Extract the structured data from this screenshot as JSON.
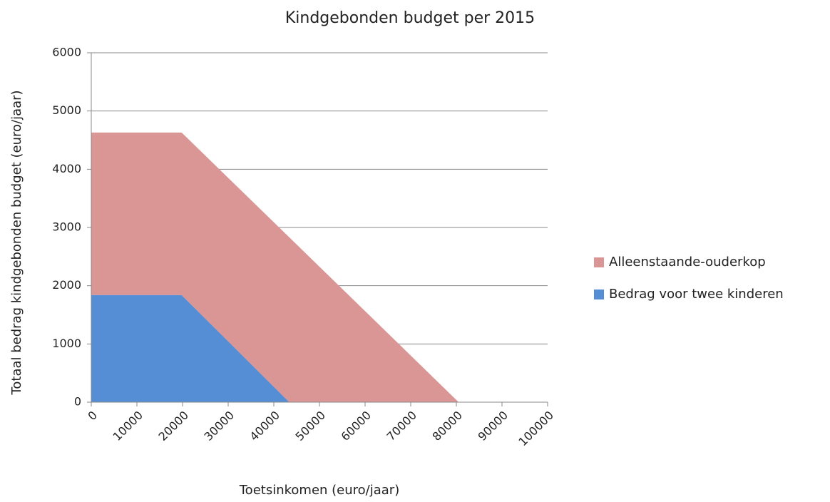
{
  "chart_data": {
    "type": "stacked_area",
    "title": "Kindgebonden budget per 2015",
    "x_label": "Toetsinkomen (euro/jaar)",
    "y_label": "Totaal bedrag kindgebonden budget (euro/jaar)",
    "x": [
      0,
      19800,
      43400,
      80500,
      100000
    ],
    "series": [
      {
        "name": "Bedrag voor twee kinderen",
        "color": "#558ed5",
        "values": [
          1840,
          1840,
          0,
          0,
          0
        ]
      },
      {
        "name": "Alleenstaande-ouderkop",
        "color": "#d99694",
        "values": [
          2790,
          2790,
          2830,
          0,
          0
        ]
      }
    ],
    "xlim": [
      0,
      100000
    ],
    "xticks": [
      0,
      10000,
      20000,
      30000,
      40000,
      50000,
      60000,
      70000,
      80000,
      90000,
      100000
    ],
    "ylim": [
      0,
      6000
    ],
    "yticks": [
      0,
      1000,
      2000,
      3000,
      4000,
      5000,
      6000
    ],
    "grid": true,
    "legend": "right"
  }
}
